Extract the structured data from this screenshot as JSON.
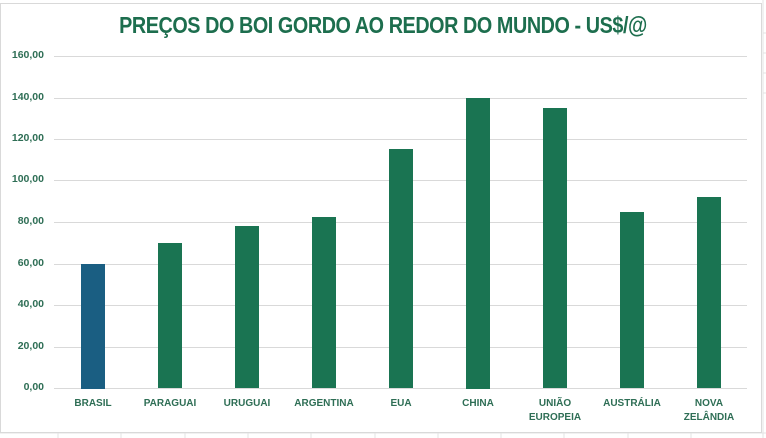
{
  "chart_data": {
    "type": "bar",
    "title": "PREÇOS DO BOI GORDO AO REDOR DO MUNDO - US$/@",
    "xlabel": "",
    "ylabel": "",
    "categories": [
      "BRASIL",
      "PARAGUAI",
      "URUGUAI",
      "ARGENTINA",
      "EUA",
      "CHINA",
      "UNIÃO EUROPEIA",
      "AUSTRÁLIA",
      "NOVA ZELÂNDIA"
    ],
    "values": [
      60,
      70,
      78,
      82.5,
      115,
      140,
      135,
      85,
      92
    ],
    "ylim": [
      0,
      160
    ],
    "yticks": [
      "0,00",
      "20,00",
      "40,00",
      "60,00",
      "80,00",
      "100,00",
      "120,00",
      "140,00",
      "160,00"
    ],
    "grid": true,
    "legend": "none",
    "colors": {
      "highlight": "#1a5e82",
      "default": "#1a7452",
      "title": "#1d6e4e",
      "axis_text": "#2e6e55"
    },
    "highlight_index": 0
  },
  "x_labels": [
    [
      "BRASIL"
    ],
    [
      "PARAGUAI"
    ],
    [
      "URUGUAI"
    ],
    [
      "ARGENTINA"
    ],
    [
      "EUA"
    ],
    [
      "CHINA"
    ],
    [
      "UNIÃO",
      "EUROPEIA"
    ],
    [
      "AUSTRÁLIA"
    ],
    [
      "NOVA",
      "ZELÂNDIA"
    ]
  ]
}
